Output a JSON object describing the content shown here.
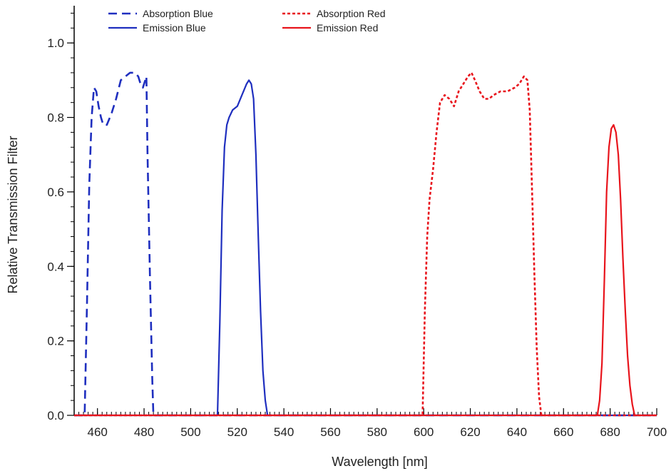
{
  "chart_data": {
    "type": "line",
    "title": "",
    "xlabel": "Wavelength [nm]",
    "ylabel": "Relative Transmission Filter",
    "xlim": [
      450,
      700
    ],
    "ylim": [
      0,
      1.1
    ],
    "x_ticks": [
      460,
      480,
      500,
      520,
      540,
      560,
      580,
      600,
      620,
      640,
      660,
      680,
      700
    ],
    "y_ticks": [
      0.0,
      0.2,
      0.4,
      0.6,
      0.8,
      1.0
    ],
    "legend_position": "top-left",
    "grid": false,
    "series": [
      {
        "name": "Absorption Blue",
        "color": "#1f2fbf",
        "style": "dashed",
        "points": [
          [
            454.5,
            0.0
          ],
          [
            455.5,
            0.3
          ],
          [
            456.5,
            0.62
          ],
          [
            457.5,
            0.8
          ],
          [
            458.5,
            0.88
          ],
          [
            459.5,
            0.87
          ],
          [
            460.5,
            0.83
          ],
          [
            461.5,
            0.8
          ],
          [
            462.5,
            0.78
          ],
          [
            464,
            0.78
          ],
          [
            466,
            0.81
          ],
          [
            468,
            0.85
          ],
          [
            470,
            0.9
          ],
          [
            472,
            0.91
          ],
          [
            474,
            0.92
          ],
          [
            476,
            0.92
          ],
          [
            477.5,
            0.91
          ],
          [
            478.5,
            0.89
          ],
          [
            479.5,
            0.88
          ],
          [
            480.5,
            0.9
          ],
          [
            481,
            0.91
          ],
          [
            481.5,
            0.7
          ],
          [
            482.5,
            0.38
          ],
          [
            483.5,
            0.1
          ],
          [
            484,
            0.0
          ]
        ]
      },
      {
        "name": "Emission Blue",
        "color": "#1f2fbf",
        "style": "solid",
        "points": [
          [
            511.5,
            0.0
          ],
          [
            512.5,
            0.25
          ],
          [
            513.5,
            0.55
          ],
          [
            514.5,
            0.72
          ],
          [
            515.5,
            0.78
          ],
          [
            516.5,
            0.8
          ],
          [
            518,
            0.82
          ],
          [
            520,
            0.83
          ],
          [
            522,
            0.86
          ],
          [
            524,
            0.89
          ],
          [
            525,
            0.9
          ],
          [
            526,
            0.89
          ],
          [
            527,
            0.85
          ],
          [
            528,
            0.7
          ],
          [
            529,
            0.48
          ],
          [
            530,
            0.28
          ],
          [
            531,
            0.12
          ],
          [
            532,
            0.04
          ],
          [
            533,
            0.0
          ]
        ]
      },
      {
        "name": "Absorption Red",
        "color": "#e8141c",
        "style": "dotted",
        "points": [
          [
            599.5,
            0.0
          ],
          [
            600.5,
            0.28
          ],
          [
            601.5,
            0.48
          ],
          [
            602.5,
            0.58
          ],
          [
            604,
            0.66
          ],
          [
            605.5,
            0.76
          ],
          [
            607,
            0.84
          ],
          [
            609,
            0.86
          ],
          [
            611,
            0.85
          ],
          [
            613,
            0.83
          ],
          [
            615,
            0.87
          ],
          [
            617,
            0.89
          ],
          [
            619,
            0.91
          ],
          [
            620.5,
            0.92
          ],
          [
            622,
            0.9
          ],
          [
            624,
            0.87
          ],
          [
            626,
            0.85
          ],
          [
            628,
            0.85
          ],
          [
            630,
            0.86
          ],
          [
            633,
            0.87
          ],
          [
            636,
            0.87
          ],
          [
            639,
            0.88
          ],
          [
            641,
            0.89
          ],
          [
            643,
            0.91
          ],
          [
            644.5,
            0.9
          ],
          [
            645.5,
            0.82
          ],
          [
            646.5,
            0.6
          ],
          [
            647.5,
            0.38
          ],
          [
            648.5,
            0.18
          ],
          [
            649.5,
            0.05
          ],
          [
            650.5,
            0.0
          ]
        ]
      },
      {
        "name": "Emission Red",
        "color": "#e8141c",
        "style": "solid",
        "points": [
          [
            674.5,
            0.0
          ],
          [
            675.5,
            0.04
          ],
          [
            676.5,
            0.14
          ],
          [
            677.5,
            0.36
          ],
          [
            678.5,
            0.6
          ],
          [
            679.5,
            0.72
          ],
          [
            680.5,
            0.77
          ],
          [
            681.5,
            0.78
          ],
          [
            682.5,
            0.76
          ],
          [
            683.5,
            0.7
          ],
          [
            684.5,
            0.58
          ],
          [
            685.5,
            0.42
          ],
          [
            686.5,
            0.28
          ],
          [
            687.5,
            0.16
          ],
          [
            688.5,
            0.08
          ],
          [
            689.5,
            0.03
          ],
          [
            690.5,
            0.0
          ]
        ]
      }
    ]
  }
}
